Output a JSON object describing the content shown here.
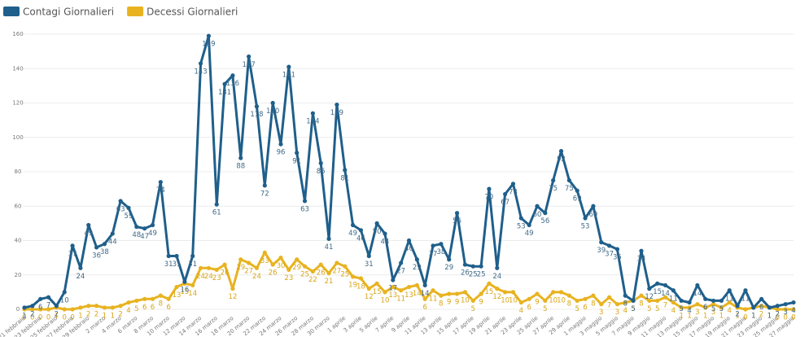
{
  "chart_data": {
    "type": "line",
    "categories": [
      "21 febbraio",
      null,
      "23 febbraio",
      null,
      "25 febbraio",
      null,
      "27 febbraio",
      null,
      "29 febbraio",
      null,
      "2 marzo",
      null,
      "4 marzo",
      null,
      "6 marzo",
      null,
      "8 marzo",
      null,
      "10 marzo",
      null,
      "12 marzo",
      null,
      "14 marzo",
      null,
      "16 marzo",
      null,
      "18 marzo",
      null,
      "20 marzo",
      null,
      "22 marzo",
      null,
      "24 marzo",
      null,
      "26 marzo",
      null,
      "28 marzo",
      null,
      "30 marzo",
      null,
      "1 aprile",
      null,
      "3 aprile",
      null,
      "5 aprile",
      null,
      "7 aprile",
      null,
      "9 aprile",
      null,
      "11 aprile",
      null,
      "13 aprile",
      null,
      "15 aprile",
      null,
      "17 aprile",
      null,
      "19 aprile",
      null,
      "21 aprile",
      null,
      "23 aprile",
      null,
      "25 aprile",
      null,
      "27 aprile",
      null,
      "29 aprile",
      null,
      "1 maggio",
      null,
      "3 maggio",
      null,
      "5 maggio",
      null,
      "7 maggio",
      null,
      "9 maggio",
      null,
      "11 maggio",
      null,
      "13 maggio",
      null,
      "15 maggio",
      null,
      "17 maggio",
      null,
      "19 maggio",
      null,
      "21 maggio",
      null,
      "23 maggio",
      null,
      "25 maggio",
      null,
      "27 maggio"
    ],
    "series": [
      {
        "name": "Contagi Giornalieri",
        "color": "#1f5f8b",
        "values": [
          1,
          2,
          6,
          7,
          2,
          10,
          37,
          24,
          49,
          36,
          38,
          44,
          63,
          59,
          48,
          47,
          49,
          74,
          31,
          31,
          16,
          31,
          143,
          159,
          61,
          131,
          136,
          88,
          147,
          118,
          72,
          120,
          96,
          141,
          91,
          63,
          114,
          85,
          41,
          119,
          81,
          49,
          46,
          31,
          50,
          44,
          17,
          27,
          40,
          29,
          14,
          37,
          38,
          29,
          56,
          26,
          25,
          25,
          70,
          24,
          67,
          73,
          53,
          49,
          60,
          56,
          75,
          92,
          75,
          69,
          53,
          60,
          39,
          37,
          35,
          8,
          5,
          34,
          12,
          15,
          14,
          11,
          5,
          4,
          14,
          6,
          5,
          5,
          11,
          2,
          11,
          1,
          6,
          1,
          2,
          3,
          4
        ]
      },
      {
        "name": "Decessi Giornalieri",
        "color": "#e8b320",
        "values": [
          0,
          0,
          0,
          0,
          1,
          0,
          0,
          1,
          2,
          2,
          1,
          1,
          2,
          4,
          5,
          6,
          6,
          8,
          6,
          13,
          15,
          14,
          24,
          24,
          23,
          26,
          12,
          29,
          27,
          24,
          33,
          26,
          30,
          23,
          29,
          25,
          22,
          26,
          21,
          27,
          25,
          19,
          18,
          12,
          15,
          10,
          13,
          11,
          13,
          14,
          6,
          11,
          8,
          9,
          9,
          10,
          5,
          9,
          15,
          12,
          10,
          10,
          4,
          6,
          9,
          5,
          10,
          10,
          8,
          5,
          6,
          8,
          3,
          7,
          3,
          4,
          5,
          8,
          5,
          5,
          7,
          4,
          1,
          1,
          3,
          1,
          3,
          1,
          4,
          1,
          0,
          1,
          2,
          1,
          0,
          0,
          0
        ]
      }
    ],
    "ylim": [
      0,
      160
    ],
    "yticks": [
      0,
      20,
      40,
      60,
      80,
      100,
      120,
      140,
      160
    ],
    "grid": true,
    "legend": "top-left"
  }
}
